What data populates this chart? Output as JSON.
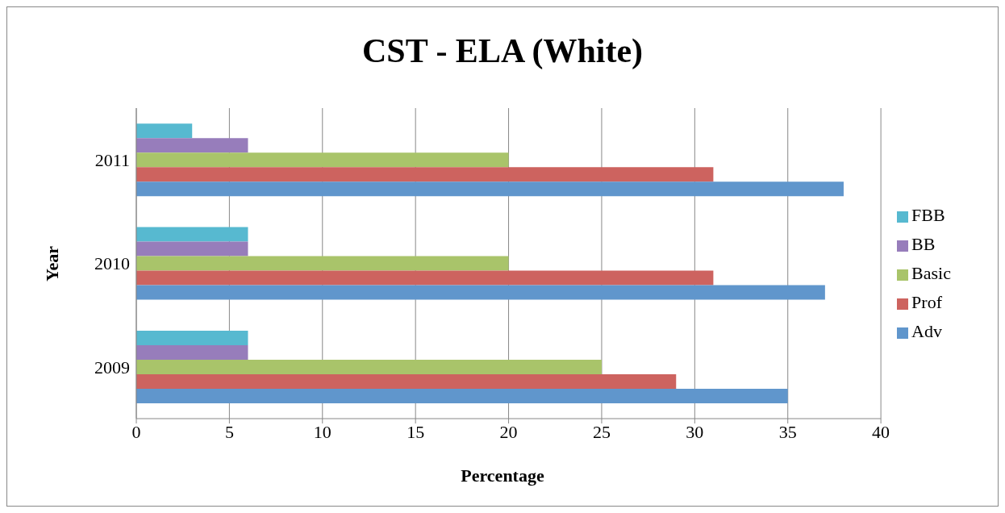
{
  "chart_data": {
    "type": "bar",
    "orientation": "horizontal",
    "title": "CST - ELA (White)",
    "xlabel": "Percentage",
    "ylabel": "Year",
    "categories": [
      "2011",
      "2010",
      "2009"
    ],
    "series": [
      {
        "name": "FBB",
        "color": "#57b9d0",
        "values": [
          3,
          6,
          6
        ]
      },
      {
        "name": "BB",
        "color": "#977dbb",
        "values": [
          6,
          6,
          6
        ]
      },
      {
        "name": "Basic",
        "color": "#a9c46a",
        "values": [
          20,
          20,
          25
        ]
      },
      {
        "name": "Prof",
        "color": "#cd635f",
        "values": [
          31,
          31,
          29
        ]
      },
      {
        "name": "Adv",
        "color": "#6096cc",
        "values": [
          38,
          37,
          35
        ]
      }
    ],
    "xlim": [
      0,
      40
    ],
    "xticks": [
      0,
      5,
      10,
      15,
      20,
      25,
      30,
      35,
      40
    ],
    "grid": "x",
    "legend": "right"
  }
}
